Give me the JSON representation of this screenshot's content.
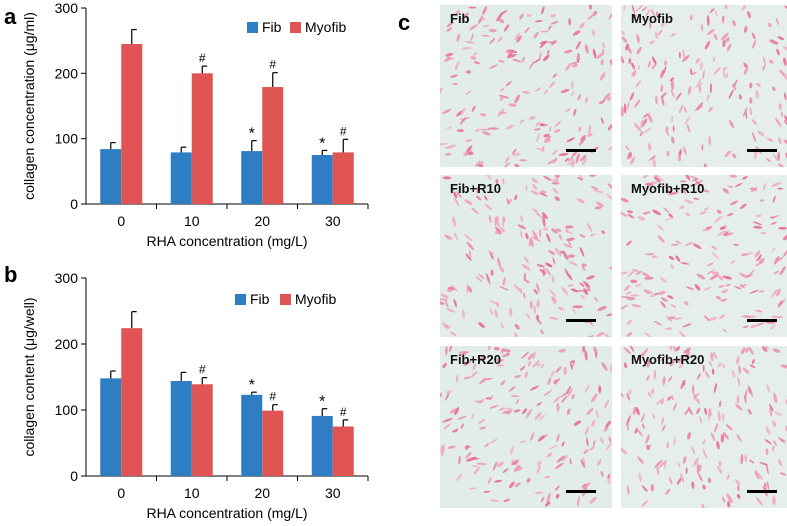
{
  "panel_labels": {
    "a": "a",
    "b": "b",
    "c": "c"
  },
  "colors": {
    "fib": "#2f7ec3",
    "myofib": "#e05454"
  },
  "chart_data": [
    {
      "type": "bar",
      "panel": "a",
      "categories": [
        "0",
        "10",
        "20",
        "30"
      ],
      "xlabel": "RHA concentration (mg/L)",
      "ylabel": "collagen concentration (μg/ml)",
      "ylim": [
        0,
        300
      ],
      "yticks": [
        "0",
        "100",
        "200",
        "300"
      ],
      "legend_position": "top-right",
      "series": [
        {
          "name": "Fib",
          "color": "#2f7ec3",
          "values": [
            84,
            79,
            81,
            75
          ],
          "errors": [
            10,
            8,
            16,
            7
          ],
          "marks": [
            "",
            "",
            "*",
            "*"
          ]
        },
        {
          "name": "Myofib",
          "color": "#e05454",
          "values": [
            245,
            200,
            179,
            79
          ],
          "errors": [
            22,
            11,
            22,
            20
          ],
          "marks": [
            "",
            "#",
            "#",
            "#"
          ]
        }
      ]
    },
    {
      "type": "bar",
      "panel": "b",
      "categories": [
        "0",
        "10",
        "20",
        "30"
      ],
      "xlabel": "RHA concentration (mg/L)",
      "ylabel": "collagen content (μg/well)",
      "ylim": [
        0,
        300
      ],
      "yticks": [
        "0",
        "100",
        "200",
        "300"
      ],
      "legend_position": "top-right",
      "series": [
        {
          "name": "Fib",
          "color": "#2f7ec3",
          "values": [
            148,
            144,
            123,
            91
          ],
          "errors": [
            11,
            13,
            4,
            11
          ],
          "marks": [
            "",
            "",
            "*",
            "*"
          ]
        },
        {
          "name": "Myofib",
          "color": "#e05454",
          "values": [
            224,
            139,
            99,
            75
          ],
          "errors": [
            25,
            10,
            9,
            10
          ],
          "marks": [
            "",
            "#",
            "#",
            "#"
          ]
        }
      ]
    }
  ],
  "micrographs": [
    "Fib",
    "Myofib",
    "Fib+R10",
    "Myofib+R10",
    "Fib+R20",
    "Myofib+R20"
  ]
}
